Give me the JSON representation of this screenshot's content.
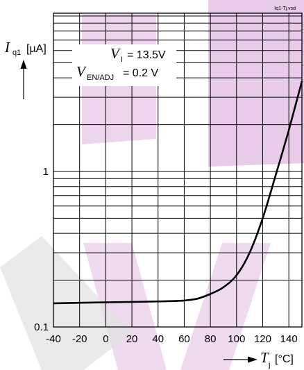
{
  "chart_data": {
    "type": "line",
    "file_label": "Iq1-Tj.vsd",
    "x": [
      -40,
      -20,
      0,
      20,
      40,
      60,
      70,
      80,
      90,
      100,
      110,
      120,
      130,
      140,
      150
    ],
    "series": [
      {
        "values": [
          0.142,
          0.143,
          0.144,
          0.145,
          0.146,
          0.148,
          0.152,
          0.163,
          0.18,
          0.215,
          0.3,
          0.5,
          0.95,
          1.85,
          3.8
        ]
      }
    ],
    "x_ticks": [
      "-40",
      "-20",
      "0",
      "20",
      "40",
      "60",
      "80",
      "100",
      "120",
      "140"
    ],
    "y_ticks": [
      "0.1",
      "1"
    ],
    "xlim": [
      -40,
      150
    ],
    "ylim": [
      0.1,
      10
    ],
    "y_scale": "log",
    "grid": true,
    "ylabel": {
      "symbol": "I",
      "sub": "q1",
      "unit": "[µA]"
    },
    "xlabel": {
      "symbol": "T",
      "sub": "j",
      "unit": "[°C]"
    },
    "conditions": [
      {
        "symbol": "V",
        "sub": "I",
        "text": "= 13.5V"
      },
      {
        "symbol": "V",
        "sub": "EN/ADJ",
        "text": "= 0.2 V"
      }
    ],
    "colors": {
      "line": "#000000",
      "grid": "#000000",
      "watermark": "#c783c8"
    }
  }
}
